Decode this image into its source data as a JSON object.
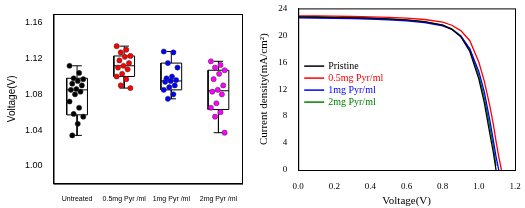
{
  "chart_data": [
    {
      "type": "box",
      "y_label": "Voltage(V)",
      "categories": [
        "Untreated",
        "0.5mg Pyr /ml",
        "1mg Pyr /ml",
        "2mg Pyr /ml"
      ],
      "colors": [
        "#000000",
        "#ff0000",
        "#0000ff",
        "#ff00ff"
      ],
      "values": [
        [
          1.112,
          1.104,
          1.098,
          1.097,
          1.095,
          1.092,
          1.09,
          1.086,
          1.085,
          1.083,
          1.08,
          1.072,
          1.065,
          1.058,
          1.055,
          1.047,
          1.034
        ],
        [
          1.134,
          1.13,
          1.127,
          1.123,
          1.122,
          1.118,
          1.115,
          1.112,
          1.11,
          1.108,
          1.103,
          1.1,
          1.097,
          1.09,
          1.087
        ],
        [
          1.128,
          1.127,
          1.115,
          1.11,
          1.1,
          1.098,
          1.096,
          1.095,
          1.094,
          1.09,
          1.088,
          1.085,
          1.08,
          1.075
        ],
        [
          1.117,
          1.113,
          1.11,
          1.107,
          1.103,
          1.097,
          1.09,
          1.085,
          1.083,
          1.08,
          1.07,
          1.065,
          1.06,
          1.055,
          1.037
        ]
      ],
      "boxes": [
        {
          "whisker_low": 1.034,
          "q1": 1.057,
          "median": 1.085,
          "q3": 1.098,
          "whisker_high": 1.112
        },
        {
          "whisker_low": 1.087,
          "q1": 1.1,
          "median": 1.112,
          "q3": 1.123,
          "whisker_high": 1.134
        },
        {
          "whisker_low": 1.075,
          "q1": 1.085,
          "median": 1.095,
          "q3": 1.115,
          "whisker_high": 1.128
        },
        {
          "whisker_low": 1.037,
          "q1": 1.063,
          "median": 1.084,
          "q3": 1.107,
          "whisker_high": 1.117
        }
      ],
      "ylim": [
        0.98,
        1.17
      ],
      "yticks": [
        {
          "value": 1,
          "label": "1.00"
        },
        {
          "value": 1.04,
          "label": "1.04"
        },
        {
          "value": 1.08,
          "label": "1.08"
        },
        {
          "value": 1.12,
          "label": "1.12"
        },
        {
          "value": 1.16,
          "label": "1.16"
        }
      ],
      "grid": false
    },
    {
      "type": "line",
      "x_label": "Voltage(V)",
      "y_label": "Current density(mA/cm²)",
      "x": [
        0,
        0.1,
        0.2,
        0.3,
        0.4,
        0.5,
        0.6,
        0.7,
        0.8,
        0.85,
        0.9,
        0.95,
        1.0,
        1.03,
        1.06,
        1.08,
        1.095,
        1.11,
        1.125
      ],
      "series": [
        {
          "name": "Pristine",
          "color": "#000000",
          "values": [
            22.75,
            22.72,
            22.68,
            22.62,
            22.55,
            22.45,
            22.3,
            22.05,
            21.5,
            20.9,
            19.8,
            17.6,
            13.5,
            10.0,
            5.5,
            2.6,
            0,
            null,
            null
          ]
        },
        {
          "name": "0.5mg Pyr/ml",
          "color": "#ff0000",
          "values": [
            22.9,
            22.88,
            22.85,
            22.8,
            22.75,
            22.68,
            22.55,
            22.35,
            21.95,
            21.5,
            20.7,
            19.2,
            16.0,
            13.2,
            9.6,
            6.8,
            4.3,
            2.0,
            0
          ]
        },
        {
          "name": "1mg Pyr/ml",
          "color": "#0000ff",
          "values": [
            22.6,
            22.57,
            22.53,
            22.48,
            22.4,
            22.3,
            22.15,
            21.9,
            21.4,
            20.9,
            19.9,
            18.0,
            14.6,
            11.6,
            7.5,
            4.4,
            2.0,
            0,
            null
          ]
        },
        {
          "name": "2mg Pyr/ml",
          "color": "#008000",
          "values": [
            22.7,
            22.67,
            22.63,
            22.57,
            22.5,
            22.4,
            22.25,
            22.0,
            21.5,
            20.95,
            19.9,
            17.9,
            14.0,
            10.8,
            6.5,
            3.6,
            0.6,
            null,
            null
          ]
        }
      ],
      "xlim": [
        0,
        1.2
      ],
      "xticks": [
        {
          "value": 0,
          "label": "0.0"
        },
        {
          "value": 0.2,
          "label": "0.2"
        },
        {
          "value": 0.4,
          "label": "0.4"
        },
        {
          "value": 0.6,
          "label": "0.6"
        },
        {
          "value": 0.8,
          "label": "0.8"
        },
        {
          "value": 1,
          "label": "1.0"
        },
        {
          "value": 1.2,
          "label": "1.2"
        }
      ],
      "ylim": [
        0,
        24
      ],
      "yticks": [
        0,
        4,
        8,
        12,
        16,
        20,
        24
      ],
      "legend": "center left",
      "grid": false
    }
  ]
}
